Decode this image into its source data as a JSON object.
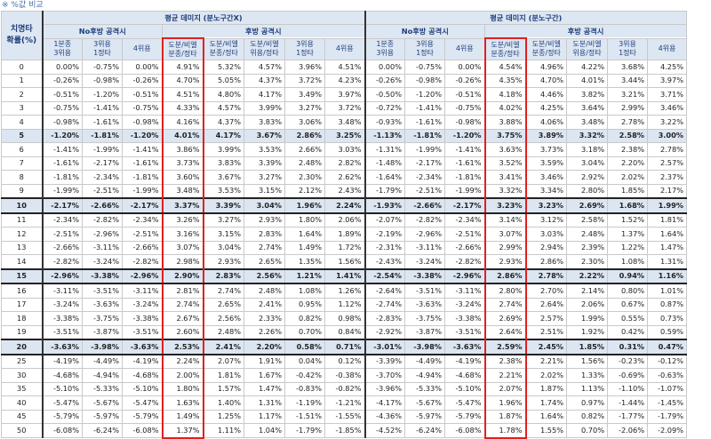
{
  "caption": "※ %값 비교",
  "row_header": [
    "치명타",
    "확률(%)"
  ],
  "groups": [
    "평균 데미지 (분노구간X)",
    "평균 데미지 (분노구간)"
  ],
  "subgroups": [
    "No후방 공격시",
    "후방 공격시"
  ],
  "col_headers": {
    "no_rear": [
      [
        "1분종",
        "3위용"
      ],
      [
        "3위용",
        "1정타"
      ],
      [
        "4위용"
      ]
    ],
    "rear": [
      [
        "도분/비엘",
        "분종/정타"
      ],
      [
        "도분/비엘",
        "분종/정타"
      ],
      [
        "도분/비엘",
        "위용/정타"
      ],
      [
        "3위용",
        "1정타"
      ],
      [
        "4위용"
      ]
    ]
  },
  "rows": [
    {
      "p": "0",
      "a": [
        "0.00%",
        "-0.75%",
        "0.00%",
        "4.91%",
        "5.32%",
        "4.57%",
        "3.96%",
        "4.51%"
      ],
      "b": [
        "0.00%",
        "-0.75%",
        "0.00%",
        "4.54%",
        "4.96%",
        "4.22%",
        "3.68%",
        "4.25%"
      ]
    },
    {
      "p": "1",
      "a": [
        "-0.26%",
        "-0.98%",
        "-0.26%",
        "4.70%",
        "5.05%",
        "4.37%",
        "3.72%",
        "4.23%"
      ],
      "b": [
        "-0.26%",
        "-0.98%",
        "-0.26%",
        "4.35%",
        "4.70%",
        "4.01%",
        "3.44%",
        "3.97%"
      ]
    },
    {
      "p": "2",
      "a": [
        "-0.51%",
        "-1.20%",
        "-0.51%",
        "4.51%",
        "4.80%",
        "4.17%",
        "3.49%",
        "3.97%"
      ],
      "b": [
        "-0.50%",
        "-1.20%",
        "-0.51%",
        "4.18%",
        "4.46%",
        "3.82%",
        "3.21%",
        "3.71%"
      ]
    },
    {
      "p": "3",
      "a": [
        "-0.75%",
        "-1.41%",
        "-0.75%",
        "4.33%",
        "4.57%",
        "3.99%",
        "3.27%",
        "3.72%"
      ],
      "b": [
        "-0.72%",
        "-1.41%",
        "-0.75%",
        "4.02%",
        "4.25%",
        "3.64%",
        "2.99%",
        "3.46%"
      ]
    },
    {
      "p": "4",
      "a": [
        "-0.98%",
        "-1.61%",
        "-0.98%",
        "4.16%",
        "4.37%",
        "3.83%",
        "3.06%",
        "3.48%"
      ],
      "b": [
        "-0.93%",
        "-1.61%",
        "-0.98%",
        "3.88%",
        "4.06%",
        "3.48%",
        "2.78%",
        "3.22%"
      ]
    },
    {
      "p": "5",
      "hl": true,
      "a": [
        "-1.20%",
        "-1.81%",
        "-1.20%",
        "4.01%",
        "4.17%",
        "3.67%",
        "2.86%",
        "3.25%"
      ],
      "b": [
        "-1.13%",
        "-1.81%",
        "-1.20%",
        "3.75%",
        "3.89%",
        "3.32%",
        "2.58%",
        "3.00%"
      ]
    },
    {
      "p": "6",
      "a": [
        "-1.41%",
        "-1.99%",
        "-1.41%",
        "3.86%",
        "3.99%",
        "3.53%",
        "2.66%",
        "3.03%"
      ],
      "b": [
        "-1.31%",
        "-1.99%",
        "-1.41%",
        "3.63%",
        "3.73%",
        "3.18%",
        "2.38%",
        "2.78%"
      ]
    },
    {
      "p": "7",
      "a": [
        "-1.61%",
        "-2.17%",
        "-1.61%",
        "3.73%",
        "3.83%",
        "3.39%",
        "2.48%",
        "2.82%"
      ],
      "b": [
        "-1.48%",
        "-2.17%",
        "-1.61%",
        "3.52%",
        "3.59%",
        "3.04%",
        "2.20%",
        "2.57%"
      ]
    },
    {
      "p": "8",
      "a": [
        "-1.81%",
        "-2.34%",
        "-1.81%",
        "3.60%",
        "3.67%",
        "3.27%",
        "2.30%",
        "2.62%"
      ],
      "b": [
        "-1.64%",
        "-2.34%",
        "-1.81%",
        "3.41%",
        "3.46%",
        "2.92%",
        "2.02%",
        "2.37%"
      ]
    },
    {
      "p": "9",
      "a": [
        "-1.99%",
        "-2.51%",
        "-1.99%",
        "3.48%",
        "3.53%",
        "3.15%",
        "2.12%",
        "2.43%"
      ],
      "b": [
        "-1.79%",
        "-2.51%",
        "-1.99%",
        "3.32%",
        "3.34%",
        "2.80%",
        "1.85%",
        "2.17%"
      ]
    },
    {
      "p": "10",
      "hl": true,
      "thickT": true,
      "thickB": true,
      "a": [
        "-2.17%",
        "-2.66%",
        "-2.17%",
        "3.37%",
        "3.39%",
        "3.04%",
        "1.96%",
        "2.24%"
      ],
      "b": [
        "-1.93%",
        "-2.66%",
        "-2.17%",
        "3.23%",
        "3.23%",
        "2.69%",
        "1.68%",
        "1.99%"
      ]
    },
    {
      "p": "11",
      "a": [
        "-2.34%",
        "-2.82%",
        "-2.34%",
        "3.26%",
        "3.27%",
        "2.93%",
        "1.80%",
        "2.06%"
      ],
      "b": [
        "-2.07%",
        "-2.82%",
        "-2.34%",
        "3.14%",
        "3.12%",
        "2.58%",
        "1.52%",
        "1.81%"
      ]
    },
    {
      "p": "12",
      "a": [
        "-2.51%",
        "-2.96%",
        "-2.51%",
        "3.16%",
        "3.15%",
        "2.83%",
        "1.64%",
        "1.89%"
      ],
      "b": [
        "-2.19%",
        "-2.96%",
        "-2.51%",
        "3.07%",
        "3.03%",
        "2.48%",
        "1.37%",
        "1.64%"
      ]
    },
    {
      "p": "13",
      "a": [
        "-2.66%",
        "-3.11%",
        "-2.66%",
        "3.07%",
        "3.04%",
        "2.74%",
        "1.49%",
        "1.72%"
      ],
      "b": [
        "-2.31%",
        "-3.11%",
        "-2.66%",
        "2.99%",
        "2.94%",
        "2.39%",
        "1.22%",
        "1.47%"
      ]
    },
    {
      "p": "14",
      "a": [
        "-2.82%",
        "-3.24%",
        "-2.82%",
        "2.98%",
        "2.93%",
        "2.65%",
        "1.35%",
        "1.56%"
      ],
      "b": [
        "-2.43%",
        "-3.24%",
        "-2.82%",
        "2.93%",
        "2.86%",
        "2.30%",
        "1.08%",
        "1.31%"
      ]
    },
    {
      "p": "15",
      "hl": true,
      "thickT": true,
      "thickB": true,
      "a": [
        "-2.96%",
        "-3.38%",
        "-2.96%",
        "2.90%",
        "2.83%",
        "2.56%",
        "1.21%",
        "1.41%"
      ],
      "b": [
        "-2.54%",
        "-3.38%",
        "-2.96%",
        "2.86%",
        "2.78%",
        "2.22%",
        "0.94%",
        "1.16%"
      ]
    },
    {
      "p": "16",
      "a": [
        "-3.11%",
        "-3.51%",
        "-3.11%",
        "2.81%",
        "2.74%",
        "2.48%",
        "1.08%",
        "1.26%"
      ],
      "b": [
        "-2.64%",
        "-3.51%",
        "-3.11%",
        "2.80%",
        "2.70%",
        "2.14%",
        "0.80%",
        "1.01%"
      ]
    },
    {
      "p": "17",
      "a": [
        "-3.24%",
        "-3.63%",
        "-3.24%",
        "2.74%",
        "2.65%",
        "2.41%",
        "0.95%",
        "1.12%"
      ],
      "b": [
        "-2.74%",
        "-3.63%",
        "-3.24%",
        "2.74%",
        "2.64%",
        "2.06%",
        "0.67%",
        "0.87%"
      ]
    },
    {
      "p": "18",
      "a": [
        "-3.38%",
        "-3.75%",
        "-3.38%",
        "2.67%",
        "2.56%",
        "2.33%",
        "0.82%",
        "0.98%"
      ],
      "b": [
        "-2.83%",
        "-3.75%",
        "-3.38%",
        "2.69%",
        "2.57%",
        "1.99%",
        "0.55%",
        "0.73%"
      ]
    },
    {
      "p": "19",
      "a": [
        "-3.51%",
        "-3.87%",
        "-3.51%",
        "2.60%",
        "2.48%",
        "2.26%",
        "0.70%",
        "0.84%"
      ],
      "b": [
        "-2.92%",
        "-3.87%",
        "-3.51%",
        "2.64%",
        "2.51%",
        "1.92%",
        "0.42%",
        "0.59%"
      ]
    },
    {
      "p": "20",
      "hl": true,
      "thickT": true,
      "thickB": true,
      "a": [
        "-3.63%",
        "-3.98%",
        "-3.63%",
        "2.53%",
        "2.41%",
        "2.20%",
        "0.58%",
        "0.71%"
      ],
      "b": [
        "-3.01%",
        "-3.98%",
        "-3.63%",
        "2.59%",
        "2.45%",
        "1.85%",
        "0.31%",
        "0.47%"
      ]
    },
    {
      "p": "25",
      "a": [
        "-4.19%",
        "-4.49%",
        "-4.19%",
        "2.24%",
        "2.07%",
        "1.91%",
        "0.04%",
        "0.12%"
      ],
      "b": [
        "-3.39%",
        "-4.49%",
        "-4.19%",
        "2.38%",
        "2.21%",
        "1.56%",
        "-0.23%",
        "-0.12%"
      ]
    },
    {
      "p": "30",
      "a": [
        "-4.68%",
        "-4.94%",
        "-4.68%",
        "2.00%",
        "1.81%",
        "1.67%",
        "-0.42%",
        "-0.38%"
      ],
      "b": [
        "-3.70%",
        "-4.94%",
        "-4.68%",
        "2.21%",
        "2.02%",
        "1.33%",
        "-0.69%",
        "-0.63%"
      ]
    },
    {
      "p": "35",
      "a": [
        "-5.10%",
        "-5.33%",
        "-5.10%",
        "1.80%",
        "1.57%",
        "1.47%",
        "-0.83%",
        "-0.82%"
      ],
      "b": [
        "-3.96%",
        "-5.33%",
        "-5.10%",
        "2.07%",
        "1.87%",
        "1.13%",
        "-1.10%",
        "-1.07%"
      ]
    },
    {
      "p": "40",
      "a": [
        "-5.47%",
        "-5.67%",
        "-5.47%",
        "1.63%",
        "1.40%",
        "1.31%",
        "-1.19%",
        "-1.21%"
      ],
      "b": [
        "-4.17%",
        "-5.67%",
        "-5.47%",
        "1.96%",
        "1.74%",
        "0.97%",
        "-1.44%",
        "-1.45%"
      ]
    },
    {
      "p": "45",
      "a": [
        "-5.79%",
        "-5.97%",
        "-5.79%",
        "1.49%",
        "1.25%",
        "1.17%",
        "-1.51%",
        "-1.55%"
      ],
      "b": [
        "-4.36%",
        "-5.97%",
        "-5.79%",
        "1.87%",
        "1.64%",
        "0.82%",
        "-1.77%",
        "-1.79%"
      ]
    },
    {
      "p": "50",
      "a": [
        "-6.08%",
        "-6.24%",
        "-6.08%",
        "1.37%",
        "1.11%",
        "1.04%",
        "-1.79%",
        "-1.85%"
      ],
      "b": [
        "-4.52%",
        "-6.24%",
        "-6.08%",
        "1.78%",
        "1.55%",
        "0.70%",
        "-2.06%",
        "-2.09%"
      ]
    }
  ]
}
